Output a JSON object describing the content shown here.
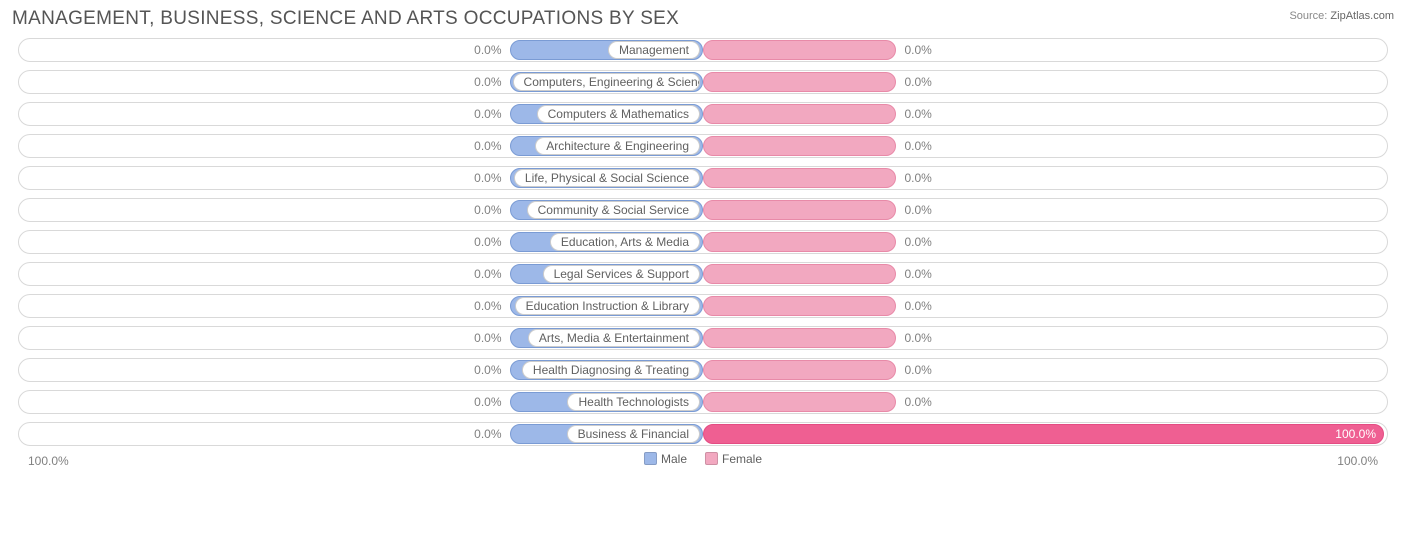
{
  "title": "MANAGEMENT, BUSINESS, SCIENCE AND ARTS OCCUPATIONS BY SEX",
  "source": {
    "label": "Source:",
    "value": "ZipAtlas.com"
  },
  "chart": {
    "type": "diverging-bar",
    "background_color": "#ffffff",
    "track_border_color": "#d9d9d9",
    "pill_border_color": "#cccccc",
    "pill_text_color": "#606060",
    "value_text_color": "#808080",
    "male_color": "#9db8e8",
    "male_border": "#7a9bd4",
    "female_color": "#f2a8c0",
    "female_border": "#e88aa8",
    "female_full_color": "#ef5f92",
    "female_full_border": "#e44c83",
    "min_bar_pct": 28,
    "categories": [
      {
        "label": "Management",
        "male_pct": 0.0,
        "male_label": "0.0%",
        "female_pct": 0.0,
        "female_label": "0.0%",
        "pill_side": "left"
      },
      {
        "label": "Computers, Engineering & Science",
        "male_pct": 0.0,
        "male_label": "0.0%",
        "female_pct": 0.0,
        "female_label": "0.0%",
        "pill_side": "left"
      },
      {
        "label": "Computers & Mathematics",
        "male_pct": 0.0,
        "male_label": "0.0%",
        "female_pct": 0.0,
        "female_label": "0.0%",
        "pill_side": "left"
      },
      {
        "label": "Architecture & Engineering",
        "male_pct": 0.0,
        "male_label": "0.0%",
        "female_pct": 0.0,
        "female_label": "0.0%",
        "pill_side": "left"
      },
      {
        "label": "Life, Physical & Social Science",
        "male_pct": 0.0,
        "male_label": "0.0%",
        "female_pct": 0.0,
        "female_label": "0.0%",
        "pill_side": "left"
      },
      {
        "label": "Community & Social Service",
        "male_pct": 0.0,
        "male_label": "0.0%",
        "female_pct": 0.0,
        "female_label": "0.0%",
        "pill_side": "left"
      },
      {
        "label": "Education, Arts & Media",
        "male_pct": 0.0,
        "male_label": "0.0%",
        "female_pct": 0.0,
        "female_label": "0.0%",
        "pill_side": "left"
      },
      {
        "label": "Legal Services & Support",
        "male_pct": 0.0,
        "male_label": "0.0%",
        "female_pct": 0.0,
        "female_label": "0.0%",
        "pill_side": "left"
      },
      {
        "label": "Education Instruction & Library",
        "male_pct": 0.0,
        "male_label": "0.0%",
        "female_pct": 0.0,
        "female_label": "0.0%",
        "pill_side": "left"
      },
      {
        "label": "Arts, Media & Entertainment",
        "male_pct": 0.0,
        "male_label": "0.0%",
        "female_pct": 0.0,
        "female_label": "0.0%",
        "pill_side": "left"
      },
      {
        "label": "Health Diagnosing & Treating",
        "male_pct": 0.0,
        "male_label": "0.0%",
        "female_pct": 0.0,
        "female_label": "0.0%",
        "pill_side": "left"
      },
      {
        "label": "Health Technologists",
        "male_pct": 0.0,
        "male_label": "0.0%",
        "female_pct": 0.0,
        "female_label": "0.0%",
        "pill_side": "left"
      },
      {
        "label": "Business & Financial",
        "male_pct": 0.0,
        "male_label": "0.0%",
        "female_pct": 100.0,
        "female_label": "100.0%",
        "pill_side": "left"
      }
    ],
    "axis": {
      "left": "100.0%",
      "right": "100.0%"
    },
    "legend": [
      {
        "label": "Male",
        "color": "#9db8e8"
      },
      {
        "label": "Female",
        "color": "#f2a8c0"
      }
    ]
  }
}
